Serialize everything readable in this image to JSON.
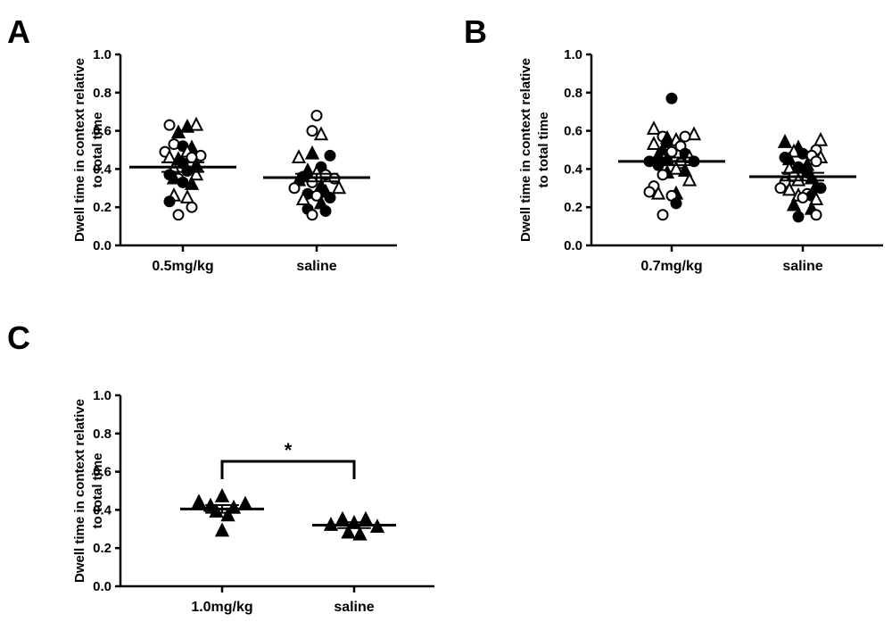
{
  "figure": {
    "panels": [
      "A",
      "B",
      "C"
    ]
  },
  "chart_data": [
    {
      "panel": "A",
      "type": "scatter",
      "title": "",
      "ylabel_line1": "Dwell time in context relative",
      "ylabel_line2": "to total time",
      "ylim": [
        0,
        1.0
      ],
      "yticks": [
        0.0,
        0.2,
        0.4,
        0.6,
        0.8,
        1.0
      ],
      "ytick_labels": [
        "0.0",
        "0.2",
        "0.4",
        "0.6",
        "0.8",
        "1.0"
      ],
      "categories": [
        "0.5mg/kg",
        "saline"
      ],
      "groups": [
        {
          "category": "0.5mg/kg",
          "mean": 0.41,
          "sem": 0.025,
          "points": [
            {
              "v": 0.63,
              "m": "oc",
              "o": -1.5
            },
            {
              "v": 0.63,
              "m": "ot",
              "o": 1.5
            },
            {
              "v": 0.59,
              "m": "ft",
              "o": -0.5
            },
            {
              "v": 0.62,
              "m": "ft",
              "o": 0.5
            },
            {
              "v": 0.53,
              "m": "oc",
              "o": -1
            },
            {
              "v": 0.52,
              "m": "fc",
              "o": 0
            },
            {
              "v": 0.51,
              "m": "ft",
              "o": 1
            },
            {
              "v": 0.49,
              "m": "oc",
              "o": -2
            },
            {
              "v": 0.49,
              "m": "ot",
              "o": 0.5
            },
            {
              "v": 0.47,
              "m": "oc",
              "o": 2
            },
            {
              "v": 0.46,
              "m": "ot",
              "o": -1.5
            },
            {
              "v": 0.45,
              "m": "ft",
              "o": -0.5
            },
            {
              "v": 0.46,
              "m": "oc",
              "o": 1
            },
            {
              "v": 0.43,
              "m": "fc",
              "o": 0
            },
            {
              "v": 0.42,
              "m": "ft",
              "o": 1.5
            },
            {
              "v": 0.4,
              "m": "ot",
              "o": -1
            },
            {
              "v": 0.39,
              "m": "fc",
              "o": 0.5
            },
            {
              "v": 0.37,
              "m": "fc",
              "o": -1.5
            },
            {
              "v": 0.37,
              "m": "ot",
              "o": 1.5
            },
            {
              "v": 0.35,
              "m": "oc",
              "o": -0.5
            },
            {
              "v": 0.35,
              "m": "ft",
              "o": -1
            },
            {
              "v": 0.33,
              "m": "fc",
              "o": 0
            },
            {
              "v": 0.32,
              "m": "ft",
              "o": 1
            },
            {
              "v": 0.25,
              "m": "ot",
              "o": 0.5
            },
            {
              "v": 0.26,
              "m": "ot",
              "o": -1
            },
            {
              "v": 0.23,
              "m": "fc",
              "o": -1.5
            },
            {
              "v": 0.2,
              "m": "oc",
              "o": 1
            },
            {
              "v": 0.16,
              "m": "oc",
              "o": -0.5
            }
          ]
        },
        {
          "category": "saline",
          "mean": 0.355,
          "sem": 0.02,
          "points": [
            {
              "v": 0.68,
              "m": "oc",
              "o": 0
            },
            {
              "v": 0.6,
              "m": "oc",
              "o": -0.5
            },
            {
              "v": 0.58,
              "m": "ot",
              "o": 0.5
            },
            {
              "v": 0.46,
              "m": "ot",
              "o": -2
            },
            {
              "v": 0.48,
              "m": "ft",
              "o": -0.5
            },
            {
              "v": 0.47,
              "m": "fc",
              "o": 1.5
            },
            {
              "v": 0.41,
              "m": "fc",
              "o": 0.5
            },
            {
              "v": 0.39,
              "m": "ft",
              "o": -1
            },
            {
              "v": 0.38,
              "m": "ot",
              "o": 0
            },
            {
              "v": 0.37,
              "m": "oc",
              "o": 1
            },
            {
              "v": 0.36,
              "m": "fc",
              "o": -1.5
            },
            {
              "v": 0.35,
              "m": "oc",
              "o": 2
            },
            {
              "v": 0.33,
              "m": "oc",
              "o": -0.5
            },
            {
              "v": 0.34,
              "m": "ft",
              "o": -2
            },
            {
              "v": 0.31,
              "m": "ft",
              "o": 0.5
            },
            {
              "v": 0.3,
              "m": "oc",
              "o": -2.5
            },
            {
              "v": 0.3,
              "m": "ot",
              "o": 2.5
            },
            {
              "v": 0.28,
              "m": "ft",
              "o": 1
            },
            {
              "v": 0.27,
              "m": "fc",
              "o": -1
            },
            {
              "v": 0.26,
              "m": "oc",
              "o": 0
            },
            {
              "v": 0.25,
              "m": "fc",
              "o": 1.5
            },
            {
              "v": 0.24,
              "m": "ot",
              "o": -1.5
            },
            {
              "v": 0.22,
              "m": "ft",
              "o": 0.5
            },
            {
              "v": 0.19,
              "m": "fc",
              "o": -1
            },
            {
              "v": 0.18,
              "m": "fc",
              "o": 1
            },
            {
              "v": 0.16,
              "m": "oc",
              "o": -0.5
            }
          ]
        }
      ]
    },
    {
      "panel": "B",
      "type": "scatter",
      "title": "",
      "ylabel_line1": "Dwell time in context relative",
      "ylabel_line2": "to total time",
      "ylim": [
        0,
        1.0
      ],
      "yticks": [
        0.0,
        0.2,
        0.4,
        0.6,
        0.8,
        1.0
      ],
      "ytick_labels": [
        "0.0",
        "0.2",
        "0.4",
        "0.6",
        "0.8",
        "1.0"
      ],
      "categories": [
        "0.7mg/kg",
        "saline"
      ],
      "groups": [
        {
          "category": "0.7mg/kg",
          "mean": 0.44,
          "sem": 0.02,
          "points": [
            {
              "v": 0.77,
              "m": "fc",
              "o": 0
            },
            {
              "v": 0.61,
              "m": "ot",
              "o": -2
            },
            {
              "v": 0.58,
              "m": "ot",
              "o": 2.5
            },
            {
              "v": 0.57,
              "m": "oc",
              "o": -1
            },
            {
              "v": 0.57,
              "m": "oc",
              "o": 1.5
            },
            {
              "v": 0.56,
              "m": "ft",
              "o": -0.5
            },
            {
              "v": 0.55,
              "m": "ot",
              "o": 0.5
            },
            {
              "v": 0.54,
              "m": "fc",
              "o": -0.5
            },
            {
              "v": 0.53,
              "m": "ot",
              "o": -2
            },
            {
              "v": 0.52,
              "m": "oc",
              "o": 1
            },
            {
              "v": 0.5,
              "m": "ft",
              "o": -1
            },
            {
              "v": 0.49,
              "m": "oc",
              "o": 0
            },
            {
              "v": 0.48,
              "m": "fc",
              "o": 1.5
            },
            {
              "v": 0.47,
              "m": "ft",
              "o": -1.5
            },
            {
              "v": 0.46,
              "m": "ot",
              "o": 2
            },
            {
              "v": 0.45,
              "m": "ft",
              "o": -0.5
            },
            {
              "v": 0.44,
              "m": "fc",
              "o": -2.5
            },
            {
              "v": 0.44,
              "m": "fc",
              "o": 2.5
            },
            {
              "v": 0.43,
              "m": "oc",
              "o": 1
            },
            {
              "v": 0.42,
              "m": "fc",
              "o": -1.5
            },
            {
              "v": 0.4,
              "m": "ot",
              "o": 0.5
            },
            {
              "v": 0.39,
              "m": "ft",
              "o": 1.5
            },
            {
              "v": 0.38,
              "m": "ft",
              "o": -0.5
            },
            {
              "v": 0.37,
              "m": "oc",
              "o": -1
            },
            {
              "v": 0.34,
              "m": "ot",
              "o": 2
            },
            {
              "v": 0.31,
              "m": "oc",
              "o": -2
            },
            {
              "v": 0.28,
              "m": "oc",
              "o": -2.5
            },
            {
              "v": 0.27,
              "m": "ot",
              "o": -1.5
            },
            {
              "v": 0.27,
              "m": "ft",
              "o": 0.5
            },
            {
              "v": 0.26,
              "m": "oc",
              "o": 0
            },
            {
              "v": 0.22,
              "m": "fc",
              "o": 0.5
            },
            {
              "v": 0.16,
              "m": "oc",
              "o": -1
            }
          ]
        },
        {
          "category": "saline",
          "mean": 0.36,
          "sem": 0.02,
          "points": [
            {
              "v": 0.55,
              "m": "ot",
              "o": 2
            },
            {
              "v": 0.54,
              "m": "ft",
              "o": -2
            },
            {
              "v": 0.51,
              "m": "ft",
              "o": -0.5
            },
            {
              "v": 0.5,
              "m": "oc",
              "o": 1.5
            },
            {
              "v": 0.49,
              "m": "ot",
              "o": -1
            },
            {
              "v": 0.48,
              "m": "fc",
              "o": 0
            },
            {
              "v": 0.47,
              "m": "oc",
              "o": 1
            },
            {
              "v": 0.46,
              "m": "ot",
              "o": 2
            },
            {
              "v": 0.46,
              "m": "fc",
              "o": -2
            },
            {
              "v": 0.45,
              "m": "ft",
              "o": -1.5
            },
            {
              "v": 0.44,
              "m": "oc",
              "o": 1.5
            },
            {
              "v": 0.42,
              "m": "ft",
              "o": 0.5
            },
            {
              "v": 0.41,
              "m": "fc",
              "o": -0.5
            },
            {
              "v": 0.4,
              "m": "ot",
              "o": -1.5
            },
            {
              "v": 0.38,
              "m": "fc",
              "o": 0.5
            },
            {
              "v": 0.36,
              "m": "oc",
              "o": -1
            },
            {
              "v": 0.35,
              "m": "ft",
              "o": 1
            },
            {
              "v": 0.34,
              "m": "ot",
              "o": -0.5
            },
            {
              "v": 0.33,
              "m": "oc",
              "o": -2
            },
            {
              "v": 0.31,
              "m": "ft",
              "o": 1.5
            },
            {
              "v": 0.3,
              "m": "oc",
              "o": -2.5
            },
            {
              "v": 0.3,
              "m": "fc",
              "o": 2
            },
            {
              "v": 0.29,
              "m": "ot",
              "o": -1.5
            },
            {
              "v": 0.27,
              "m": "oc",
              "o": 0.5
            },
            {
              "v": 0.26,
              "m": "fc",
              "o": 1
            },
            {
              "v": 0.26,
              "m": "ot",
              "o": -0.5
            },
            {
              "v": 0.25,
              "m": "oc",
              "o": 0
            },
            {
              "v": 0.24,
              "m": "ot",
              "o": 1.5
            },
            {
              "v": 0.21,
              "m": "ft",
              "o": -1
            },
            {
              "v": 0.19,
              "m": "ft",
              "o": 1
            },
            {
              "v": 0.16,
              "m": "oc",
              "o": 1.5
            },
            {
              "v": 0.15,
              "m": "fc",
              "o": -0.5
            }
          ]
        }
      ]
    },
    {
      "panel": "C",
      "type": "scatter",
      "title": "",
      "ylabel_line1": "Dwell time in context relative",
      "ylabel_line2": "to total time",
      "ylim": [
        0,
        1.0
      ],
      "yticks": [
        0.0,
        0.2,
        0.4,
        0.6,
        0.8,
        1.0
      ],
      "ytick_labels": [
        "0.0",
        "0.2",
        "0.4",
        "0.6",
        "0.8",
        "1.0"
      ],
      "categories": [
        "1.0mg/kg",
        "saline"
      ],
      "annotation": "*",
      "groups": [
        {
          "category": "1.0mg/kg",
          "mean": 0.405,
          "sem": 0.02,
          "points": [
            {
              "v": 0.44,
              "m": "ft",
              "o": -2
            },
            {
              "v": 0.43,
              "m": "ft",
              "o": 2
            },
            {
              "v": 0.42,
              "m": "ft",
              "o": -1
            },
            {
              "v": 0.47,
              "m": "ft",
              "o": 0
            },
            {
              "v": 0.41,
              "m": "ft",
              "o": 1
            },
            {
              "v": 0.39,
              "m": "ft",
              "o": -0.5
            },
            {
              "v": 0.37,
              "m": "ft",
              "o": 0.5
            },
            {
              "v": 0.29,
              "m": "ft",
              "o": 0
            }
          ]
        },
        {
          "category": "saline",
          "mean": 0.32,
          "sem": 0.015,
          "points": [
            {
              "v": 0.35,
              "m": "ft",
              "o": -1
            },
            {
              "v": 0.35,
              "m": "ft",
              "o": 1
            },
            {
              "v": 0.33,
              "m": "ft",
              "o": 0
            },
            {
              "v": 0.32,
              "m": "ft",
              "o": -2
            },
            {
              "v": 0.31,
              "m": "ft",
              "o": 2
            },
            {
              "v": 0.28,
              "m": "ft",
              "o": -0.5
            },
            {
              "v": 0.27,
              "m": "ft",
              "o": 0.5
            }
          ]
        }
      ]
    }
  ]
}
